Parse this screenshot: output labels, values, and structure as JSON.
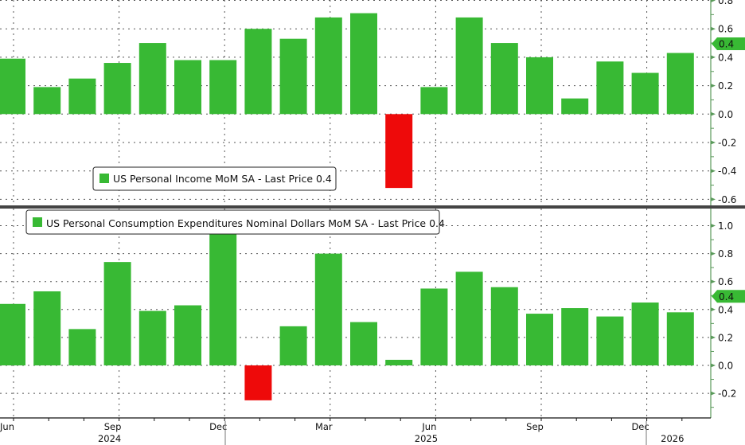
{
  "chart_data": [
    {
      "type": "bar",
      "title": "US Personal Income MoM SA - Last Price 0.4",
      "legend_label": "US Personal Income MoM SA - Last Price 0.4",
      "legend_placement": "bottom-center",
      "last_price": "0.4",
      "categories": [
        "Jun 2024",
        "Jul 2024",
        "Aug 2024",
        "Sep 2024",
        "Oct 2024",
        "Nov 2024",
        "Dec 2024",
        "Jan 2025",
        "Feb 2025",
        "Mar 2025",
        "Apr 2025",
        "May 2025",
        "Jun 2025",
        "Jul 2025",
        "Aug 2025",
        "Sep 2025",
        "Oct 2025",
        "Nov 2025",
        "Dec 2025",
        "Jan 2026"
      ],
      "values": [
        0.39,
        0.19,
        0.25,
        0.36,
        0.5,
        0.38,
        0.38,
        0.6,
        0.53,
        0.68,
        0.71,
        -0.52,
        0.19,
        0.68,
        0.5,
        0.4,
        0.11,
        0.37,
        0.29,
        0.43
      ],
      "ylim": [
        -0.62,
        0.8
      ],
      "yticks": [
        "0.8",
        "0.6",
        "0.4",
        "0.2",
        "0.0",
        "-0.2",
        "-0.4",
        "-0.6"
      ],
      "grid": true
    },
    {
      "type": "bar",
      "title": "US Personal Consumption Expenditures Nominal Dollars MoM SA - Last Price 0.4",
      "legend_label": "US Personal Consumption Expenditures Nominal Dollars MoM SA - Last Price 0.4",
      "legend_placement": "top-left",
      "last_price": "0.4",
      "categories": [
        "Jun 2024",
        "Jul 2024",
        "Aug 2024",
        "Sep 2024",
        "Oct 2024",
        "Nov 2024",
        "Dec 2024",
        "Jan 2025",
        "Feb 2025",
        "Mar 2025",
        "Apr 2025",
        "May 2025",
        "Jun 2025",
        "Jul 2025",
        "Aug 2025",
        "Sep 2025",
        "Oct 2025",
        "Nov 2025",
        "Dec 2025",
        "Jan 2026"
      ],
      "values": [
        0.44,
        0.53,
        0.26,
        0.74,
        0.39,
        0.43,
        1.1,
        -0.25,
        0.28,
        0.8,
        0.31,
        0.04,
        0.55,
        0.67,
        0.56,
        0.37,
        0.41,
        0.35,
        0.45,
        0.38
      ],
      "ylim": [
        -0.37,
        1.1
      ],
      "yticks": [
        "1.0",
        "0.8",
        "0.6",
        "0.4",
        "0.2",
        "0.0",
        "-0.2"
      ],
      "grid": true
    }
  ],
  "xaxis": {
    "month_labels": [
      {
        "label": "Jun",
        "index": 0
      },
      {
        "label": "Sep",
        "index": 3
      },
      {
        "label": "Dec",
        "index": 6
      },
      {
        "label": "Mar",
        "index": 9
      },
      {
        "label": "Jun",
        "index": 12
      },
      {
        "label": "Sep",
        "index": 15
      },
      {
        "label": "Dec",
        "index": 18
      }
    ],
    "year_labels": [
      {
        "label": "2024",
        "index": 3
      },
      {
        "label": "2025",
        "index": 12
      },
      {
        "label": "2026",
        "index": 19
      }
    ]
  },
  "colors": {
    "positive": "#38b934",
    "negative": "#ee0a0a",
    "axis": "#5a9a5a",
    "grid": "#555555",
    "divider": "#444444"
  }
}
